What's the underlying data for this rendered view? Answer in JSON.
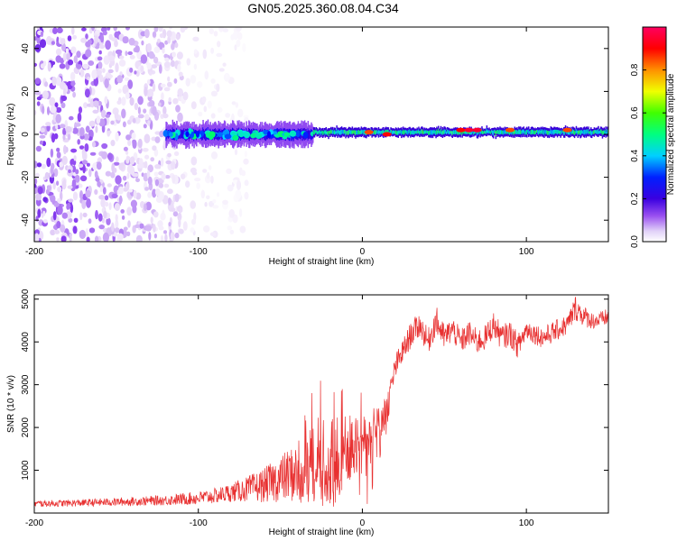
{
  "figure_title": "GN05.2025.360.08.04.C34",
  "colors": {
    "snr_line": "#e83030",
    "text": "#000000",
    "background": "#ffffff"
  },
  "chart_data": [
    {
      "type": "heatmap",
      "name": "spectrogram",
      "title": "GN05.2025.360.08.04.C34",
      "xlabel": "Height of straight line (km)",
      "ylabel": "Frequency (Hz)",
      "xlim": [
        -200,
        150
      ],
      "ylim": [
        -50,
        50
      ],
      "xticks": [
        -200,
        -100,
        0,
        100
      ],
      "yticks": [
        -40,
        -20,
        0,
        20,
        40
      ],
      "colorbar": {
        "label": "Normalized spectral amplitude",
        "range": [
          0.0,
          1.0
        ],
        "ticks": [
          0.0,
          0.2,
          0.4,
          0.6,
          0.8
        ],
        "colormap": [
          "#ffffff",
          "#e8d8f8",
          "#8a3ff0",
          "#3a00d8",
          "#0000ff",
          "#00d8ff",
          "#00ff60",
          "#f0ff00",
          "#ff9000",
          "#ff0000",
          "#ff0060"
        ]
      },
      "regions": [
        {
          "desc": "scattered noise",
          "x_range": [
            -200,
            -110
          ],
          "freq_range": [
            -50,
            50
          ],
          "amplitude": 0.15
        },
        {
          "desc": "sparse noise",
          "x_range": [
            -110,
            -70
          ],
          "freq_range": [
            -50,
            50
          ],
          "amplitude": 0.05
        },
        {
          "desc": "broad signal band",
          "x_range": [
            -120,
            -30
          ],
          "freq_center": 0,
          "freq_width": 10,
          "amplitude": 0.35
        },
        {
          "desc": "narrow signal band",
          "x_range": [
            -30,
            150
          ],
          "freq_center": 1,
          "freq_width": 4,
          "amplitude": 0.55
        }
      ],
      "hotspots": [
        {
          "x": 4,
          "freq": 1,
          "amplitude": 0.85
        },
        {
          "x": 15,
          "freq": 0,
          "amplitude": 0.9
        },
        {
          "x": 60,
          "freq": 2,
          "amplitude": 0.9
        },
        {
          "x": 65,
          "freq": 2,
          "amplitude": 0.95
        },
        {
          "x": 70,
          "freq": 2,
          "amplitude": 0.95
        },
        {
          "x": 90,
          "freq": 2,
          "amplitude": 0.85
        },
        {
          "x": 125,
          "freq": 2,
          "amplitude": 0.85
        }
      ]
    },
    {
      "type": "line",
      "name": "snr",
      "xlabel": "Height of straight line (km)",
      "ylabel": "SNR (10 * v/v)",
      "xlim": [
        -200,
        150
      ],
      "ylim": [
        0,
        5100
      ],
      "xticks": [
        -200,
        -100,
        0,
        100
      ],
      "yticks": [
        1000,
        2000,
        3000,
        4000,
        5000
      ],
      "series": [
        {
          "name": "SNR",
          "x": [
            -200,
            -180,
            -160,
            -140,
            -120,
            -100,
            -90,
            -80,
            -70,
            -60,
            -50,
            -40,
            -30,
            -25,
            -20,
            -15,
            -10,
            -5,
            0,
            5,
            10,
            15,
            18,
            20,
            25,
            30,
            35,
            40,
            45,
            50,
            55,
            60,
            65,
            70,
            75,
            80,
            85,
            90,
            95,
            100,
            105,
            110,
            115,
            120,
            125,
            130,
            135,
            140,
            145,
            150
          ],
          "values": [
            220,
            230,
            250,
            270,
            300,
            350,
            400,
            480,
            560,
            650,
            800,
            950,
            1100,
            1150,
            1250,
            1300,
            1500,
            1500,
            1800,
            2000,
            2100,
            2400,
            3000,
            3400,
            3800,
            4200,
            4400,
            4000,
            4500,
            4100,
            4300,
            4000,
            4200,
            4000,
            4100,
            4400,
            4100,
            4200,
            3900,
            4300,
            4200,
            4100,
            4200,
            4300,
            4400,
            4800,
            4600,
            4500,
            4500,
            4600
          ],
          "noise": [
            80,
            80,
            90,
            100,
            120,
            160,
            180,
            220,
            300,
            400,
            550,
            700,
            900,
            1000,
            1100,
            1100,
            900,
            800,
            500,
            400,
            400,
            400,
            300,
            300,
            300,
            300,
            300,
            300,
            350,
            300,
            300,
            300,
            300,
            300,
            300,
            300,
            300,
            300,
            300,
            250,
            250,
            250,
            250,
            250,
            250,
            300,
            250,
            200,
            200,
            200
          ]
        }
      ]
    }
  ]
}
